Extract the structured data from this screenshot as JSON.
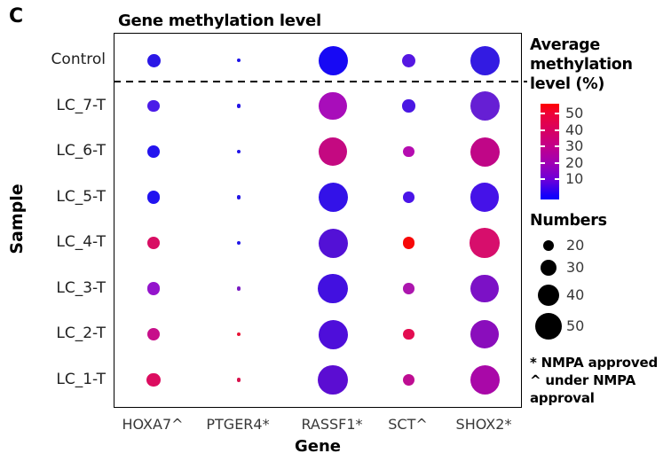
{
  "panel_label": "C",
  "chart_data": {
    "type": "scatter",
    "subtype": "bubble-matrix",
    "title": "Gene methylation level",
    "xlabel": "Gene",
    "ylabel": "Sample",
    "genes": [
      "HOXA7^",
      "PTGER4*",
      "RASSF1*",
      "SCT^",
      "SHOX2*"
    ],
    "samples": [
      "Control",
      "LC_7-T",
      "LC_6-T",
      "LC_5-T",
      "LC_4-T",
      "LC_3-T",
      "LC_2-T",
      "LC_1-T"
    ],
    "separator_after_row": "Control",
    "cell_encoding": "pct = average methylation level % (color, estimated), n = numbers (bubble size, estimated)",
    "cells": [
      [
        {
          "pct": 4,
          "n": 25,
          "color": "#2B18E6"
        },
        {
          "pct": 3,
          "n": 8,
          "color": "#1D13E9"
        },
        {
          "pct": 2,
          "n": 55,
          "color": "#1709F4"
        },
        {
          "pct": 9,
          "n": 25,
          "color": "#5517E2"
        },
        {
          "pct": 5,
          "n": 55,
          "color": "#331BE2"
        }
      ],
      [
        {
          "pct": 7,
          "n": 23,
          "color": "#4B1BE8"
        },
        {
          "pct": 4,
          "n": 8,
          "color": "#2415E5"
        },
        {
          "pct": 22,
          "n": 53,
          "color": "#A80DBA"
        },
        {
          "pct": 7,
          "n": 24,
          "color": "#4A17E3"
        },
        {
          "pct": 13,
          "n": 55,
          "color": "#661FD4"
        }
      ],
      [
        {
          "pct": 5,
          "n": 23,
          "color": "#2414EE"
        },
        {
          "pct": 4,
          "n": 8,
          "color": "#2013E8"
        },
        {
          "pct": 33,
          "n": 54,
          "color": "#C40981"
        },
        {
          "pct": 24,
          "n": 21,
          "color": "#B50CB0"
        },
        {
          "pct": 30,
          "n": 55,
          "color": "#C00687"
        }
      ],
      [
        {
          "pct": 5,
          "n": 24,
          "color": "#2113F0"
        },
        {
          "pct": 4,
          "n": 8,
          "color": "#2315E5"
        },
        {
          "pct": 6,
          "n": 55,
          "color": "#3312E8"
        },
        {
          "pct": 8,
          "n": 21,
          "color": "#4A14E8"
        },
        {
          "pct": 7,
          "n": 54,
          "color": "#4512E8"
        }
      ],
      [
        {
          "pct": 40,
          "n": 24,
          "color": "#D80E63"
        },
        {
          "pct": 4,
          "n": 8,
          "color": "#2016E8"
        },
        {
          "pct": 9,
          "n": 55,
          "color": "#5311D6"
        },
        {
          "pct": 54,
          "n": 22,
          "color": "#F70808"
        },
        {
          "pct": 38,
          "n": 56,
          "color": "#D70E6C"
        }
      ],
      [
        {
          "pct": 17,
          "n": 24,
          "color": "#9414CC"
        },
        {
          "pct": 14,
          "n": 7,
          "color": "#7A1BC3"
        },
        {
          "pct": 6,
          "n": 56,
          "color": "#4210E0"
        },
        {
          "pct": 23,
          "n": 21,
          "color": "#AC16AE"
        },
        {
          "pct": 15,
          "n": 53,
          "color": "#7C11C6"
        }
      ],
      [
        {
          "pct": 31,
          "n": 24,
          "color": "#C70F8A"
        },
        {
          "pct": 45,
          "n": 7,
          "color": "#E81335"
        },
        {
          "pct": 8,
          "n": 55,
          "color": "#4E0EDA"
        },
        {
          "pct": 43,
          "n": 21,
          "color": "#E30D51"
        },
        {
          "pct": 18,
          "n": 54,
          "color": "#8A0DBC"
        }
      ],
      [
        {
          "pct": 41,
          "n": 26,
          "color": "#DC0D60"
        },
        {
          "pct": 42,
          "n": 7,
          "color": "#D8124C"
        },
        {
          "pct": 10,
          "n": 56,
          "color": "#5B0DD2"
        },
        {
          "pct": 29,
          "n": 22,
          "color": "#BE0D92"
        },
        {
          "pct": 21,
          "n": 55,
          "color": "#A908A8"
        }
      ]
    ]
  },
  "legend": {
    "color": {
      "title": "Average\nmethylation\nlevel (%)",
      "ticks": [
        50,
        40,
        30,
        20,
        10
      ],
      "gradient_colors": [
        "#FF0000",
        "#EF0338",
        "#D9005F",
        "#C3008A",
        "#A000B4",
        "#6E00D9",
        "#1500FA",
        "#0E00FD"
      ],
      "gradient_positions": [
        0,
        10,
        27,
        44,
        62,
        79,
        96,
        100
      ]
    },
    "size": {
      "title": "Numbers",
      "values": [
        20,
        30,
        40,
        50
      ]
    },
    "footnote": "* NMPA approved\n^ under NMPA\napproval"
  }
}
